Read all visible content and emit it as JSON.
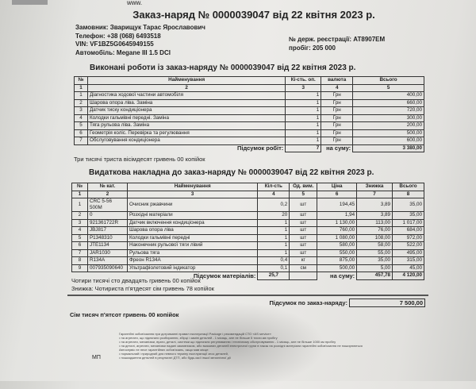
{
  "header": {
    "www": "www.",
    "title": "Заказ-наряд № 0000039047 від 22 квітня 2023 р."
  },
  "client": {
    "customer": "Замовник: Зварищук Тарас Ярославович",
    "phone": "Телефон: +38 (068) 6493518",
    "vin": "VIN: VF1BZ5G0645949155",
    "car": "Автомобіль: Megane III 1.5 DCI",
    "plate": "№ держ. реєстрації: AT8907EM",
    "mileage": "пробіг: 205 000"
  },
  "works": {
    "title": "Виконані роботи із заказ-наряду № 0000039047 від 22 квітня 2023 р.",
    "headers": [
      "№",
      "Найменування",
      "Кі-сть. оп.",
      "валюта",
      "Всього"
    ],
    "numbers": [
      "1",
      "2",
      "3",
      "4",
      "5"
    ],
    "rows": [
      [
        "1",
        "Діагностика ходової частини автомобіля",
        "1",
        "Грн",
        "400,00"
      ],
      [
        "2",
        "Шарова опора ліва. Заміна",
        "1",
        "Грн",
        "660,00"
      ],
      [
        "3",
        "Датчик тиску кондиціонера",
        "1",
        "Грн",
        "720,00"
      ],
      [
        "4",
        "Колодки гальмівні передні. Заміна",
        "1",
        "Грн",
        "300,00"
      ],
      [
        "5",
        "Тяга рульова ліва. Заміна",
        "1",
        "Грн",
        "200,00"
      ],
      [
        "6",
        "Геометрія коліс. Перевірка та регулювання",
        "1",
        "Грн",
        "500,00"
      ],
      [
        "7",
        "Обслуговування кондиціонера",
        "1",
        "Грн",
        "600,00"
      ]
    ],
    "total_label": "Підсумок робіт:",
    "total_qty": "7",
    "sum_label": "на суму:",
    "total": "3 380,00",
    "words": "Три тисячі триста вісімдесят гривень 00 копійок"
  },
  "materials": {
    "title": "Видаткова накладна до заказ-наряду № 0000039047 від 22 квітня 2023 р.",
    "headers": [
      "№",
      "№ кат.",
      "Найменування",
      "Кіл-сть",
      "Од. вим.",
      "Ціна",
      "Знижка",
      "Всього"
    ],
    "numbers": [
      "1",
      "2",
      "3",
      "4",
      "5",
      "6",
      "7",
      "8"
    ],
    "rows": [
      [
        "1",
        "CRC 5-56 500M",
        "Очисник ржавчини",
        "0,2",
        "шт",
        "194,45",
        "3,89",
        "35,00"
      ],
      [
        "2",
        "0",
        "Розхідні матеріали",
        "20",
        "шт",
        "1,94",
        "3,89",
        "35,00"
      ],
      [
        "3",
        "921361722R",
        "Датчик включення кондиціонера",
        "1",
        "шт",
        "1 130,00",
        "113,00",
        "1 017,00"
      ],
      [
        "4",
        "JBJ817",
        "Шарова опора ліва",
        "1",
        "шт",
        "760,00",
        "76,00",
        "684,00"
      ],
      [
        "5",
        "P1348310",
        "Колодки гальмівні передні",
        "1",
        "шт",
        "1 080,00",
        "108,00",
        "972,00"
      ],
      [
        "6",
        "JTE1134",
        "Наконечник рульової тяги лівий",
        "1",
        "шт",
        "580,00",
        "58,00",
        "522,00"
      ],
      [
        "7",
        "JAR1030",
        "Рульова тяга",
        "1",
        "шт",
        "550,00",
        "55,00",
        "495,00"
      ],
      [
        "8",
        "R134A",
        "Фреон R134A",
        "0,4",
        "кг",
        "875,00",
        "35,00",
        "315,00"
      ],
      [
        "9",
        "007935090640",
        "Ультрафіолетовий індикатор",
        "0,1",
        "см",
        "500,00",
        "5,00",
        "45,00"
      ]
    ],
    "total_label": "Підсумок матеріалів:",
    "total_qty": "25,7",
    "sum_label": "на суму:",
    "total_discount": "457,78",
    "total": "4 120,00",
    "words": "Чотири тисячі сто двадцять гривень 00 копійок",
    "discount_words": "Знижка: Чотириста п'ятдесят сім гривень 78 копійок"
  },
  "grand": {
    "label": "Підсумок по заказ-наряду:",
    "value": "7 500,00",
    "words": "Сім тисяч п'ятсот гривень 00 копійок"
  },
  "footer": {
    "stamp": "МП",
    "warranty": [
      "Гарантійні зобов'язання при дотриманні правил експлуатації Package і рекомендацій СТО «AS service»",
      "• на агрегати, що підлягали розбиранню, збірці і заміні деталей - 1 місяць, але не більше 5 тисяч км пробігу",
      "• на агрегати, механізми, вузли, деталі, системи що підлягали регулюванню і технічному обслуговуванню - 1 місяць, але не більше 1000 км пробігу",
      "• на деталі, агрегати, механізми надані замовником, або вказаних деталей електричної групи в також на розхідні матеріали гарантійні зобов'язання не поширюються",
      "Автосервіс не несе гарантійних зобов'язань, якщо мав місце:",
      "• нормальний і природний для певного терміну експлуатації знос деталей,",
      "• пошкодження деталей в результаті ДТП, або будь-якої іншої механічної дії"
    ]
  }
}
